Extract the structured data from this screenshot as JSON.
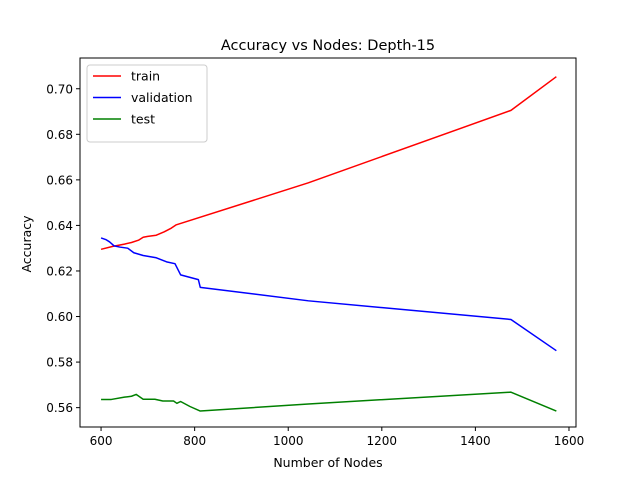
{
  "chart_data": {
    "type": "line",
    "title": "Accuracy vs Nodes: Depth-15",
    "xlabel": "Number of Nodes",
    "ylabel": "Accuracy",
    "xlim": [
      555,
      1615
    ],
    "ylim": [
      0.5515,
      0.7135
    ],
    "xticks": [
      600,
      800,
      1000,
      1200,
      1400,
      1600
    ],
    "yticks": [
      0.56,
      0.58,
      0.6,
      0.62,
      0.64,
      0.66,
      0.68,
      0.7
    ],
    "grid": false,
    "legend_position": "top-left",
    "series": [
      {
        "name": "train",
        "color": "#ff0000",
        "points": [
          [
            600,
            0.6295
          ],
          [
            625,
            0.6308
          ],
          [
            650,
            0.6318
          ],
          [
            665,
            0.6325
          ],
          [
            680,
            0.6335
          ],
          [
            690,
            0.6348
          ],
          [
            700,
            0.6352
          ],
          [
            718,
            0.6357
          ],
          [
            735,
            0.6372
          ],
          [
            750,
            0.6388
          ],
          [
            760,
            0.6402
          ],
          [
            1043,
            0.6587
          ],
          [
            1476,
            0.6905
          ],
          [
            1573,
            0.7053
          ]
        ]
      },
      {
        "name": "validation",
        "color": "#0000ff",
        "points": [
          [
            600,
            0.6345
          ],
          [
            610,
            0.6338
          ],
          [
            618,
            0.6328
          ],
          [
            628,
            0.631
          ],
          [
            640,
            0.6305
          ],
          [
            657,
            0.63
          ],
          [
            670,
            0.628
          ],
          [
            690,
            0.6268
          ],
          [
            718,
            0.6258
          ],
          [
            740,
            0.624
          ],
          [
            758,
            0.6232
          ],
          [
            770,
            0.6183
          ],
          [
            808,
            0.6162
          ],
          [
            812,
            0.6128
          ],
          [
            1043,
            0.6069
          ],
          [
            1476,
            0.5987
          ],
          [
            1573,
            0.585
          ]
        ]
      },
      {
        "name": "test",
        "color": "#008000",
        "points": [
          [
            600,
            0.5636
          ],
          [
            622,
            0.5636
          ],
          [
            650,
            0.5646
          ],
          [
            665,
            0.565
          ],
          [
            675,
            0.5658
          ],
          [
            690,
            0.5637
          ],
          [
            715,
            0.5637
          ],
          [
            732,
            0.5629
          ],
          [
            755,
            0.5629
          ],
          [
            762,
            0.5619
          ],
          [
            770,
            0.5627
          ],
          [
            790,
            0.5605
          ],
          [
            812,
            0.5585
          ],
          [
            1043,
            0.5616
          ],
          [
            1476,
            0.5668
          ],
          [
            1573,
            0.5585
          ]
        ]
      }
    ]
  }
}
